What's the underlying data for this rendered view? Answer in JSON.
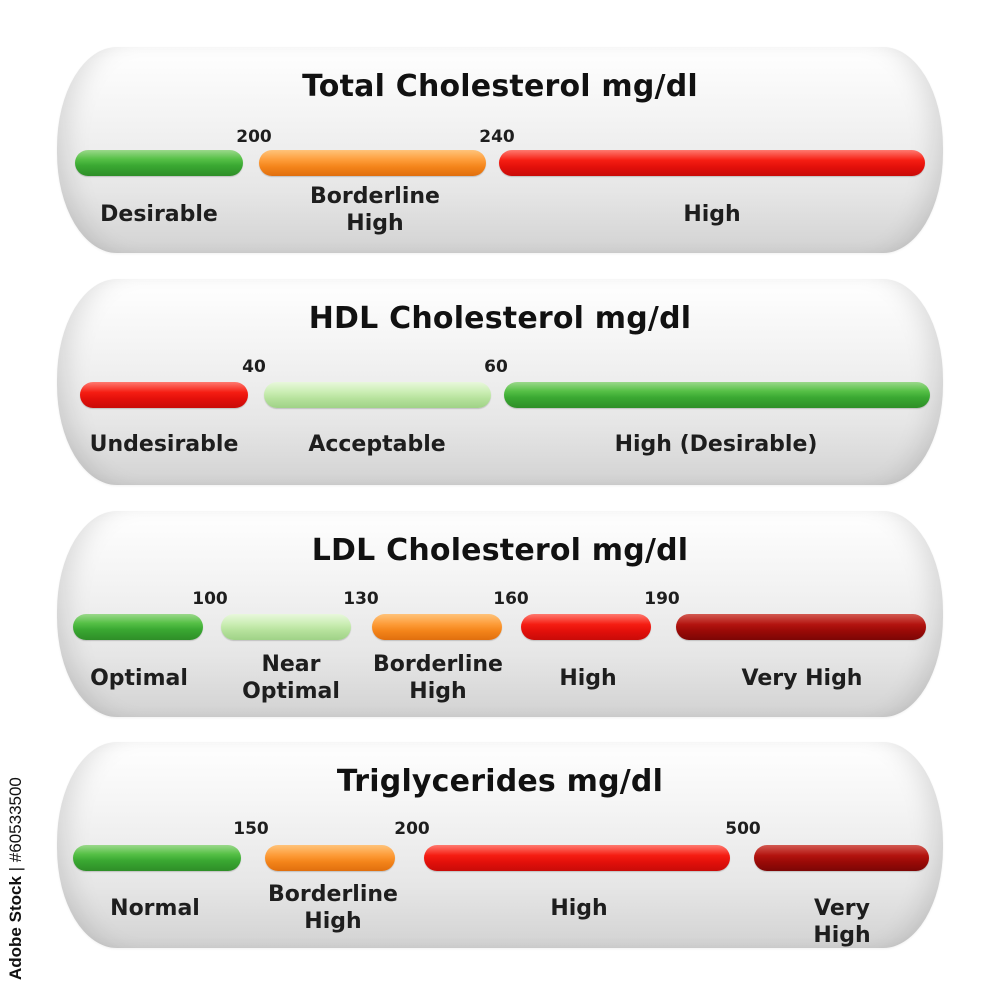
{
  "panels": [
    {
      "title": "Total Cholesterol mg/dl",
      "ticks": [
        "200",
        "240"
      ],
      "segments": [
        {
          "label": "Desirable",
          "color": "#3aa832"
        },
        {
          "label": "Borderline\nHigh",
          "color": "#f4841a"
        },
        {
          "label": "High",
          "color": "#e3100b"
        }
      ]
    },
    {
      "title": "HDL Cholesterol mg/dl",
      "ticks": [
        "40",
        "60"
      ],
      "segments": [
        {
          "label": "Undesirable",
          "color": "#e3100b"
        },
        {
          "label": "Acceptable",
          "color": "#b5e19b"
        },
        {
          "label": "High (Desirable)",
          "color": "#3aa832"
        }
      ]
    },
    {
      "title": "LDL Cholesterol mg/dl",
      "ticks": [
        "100",
        "130",
        "160",
        "190"
      ],
      "segments": [
        {
          "label": "Optimal",
          "color": "#3aa832"
        },
        {
          "label": "Near\nOptimal",
          "color": "#b5e19b"
        },
        {
          "label": "Borderline\nHigh",
          "color": "#f4841a"
        },
        {
          "label": "High",
          "color": "#e3100b"
        },
        {
          "label": "Very High",
          "color": "#9a0a07"
        }
      ]
    },
    {
      "title": "Triglycerides mg/dl",
      "ticks": [
        "150",
        "200",
        "500"
      ],
      "segments": [
        {
          "label": "Normal",
          "color": "#3aa832"
        },
        {
          "label": "Borderline\nHigh",
          "color": "#f4841a"
        },
        {
          "label": "High",
          "color": "#e3100b"
        },
        {
          "label": "Very High",
          "color": "#9a0a07"
        }
      ]
    }
  ],
  "watermark": {
    "brand": "Adobe Stock",
    "separator": "|",
    "id": "#60533500"
  }
}
